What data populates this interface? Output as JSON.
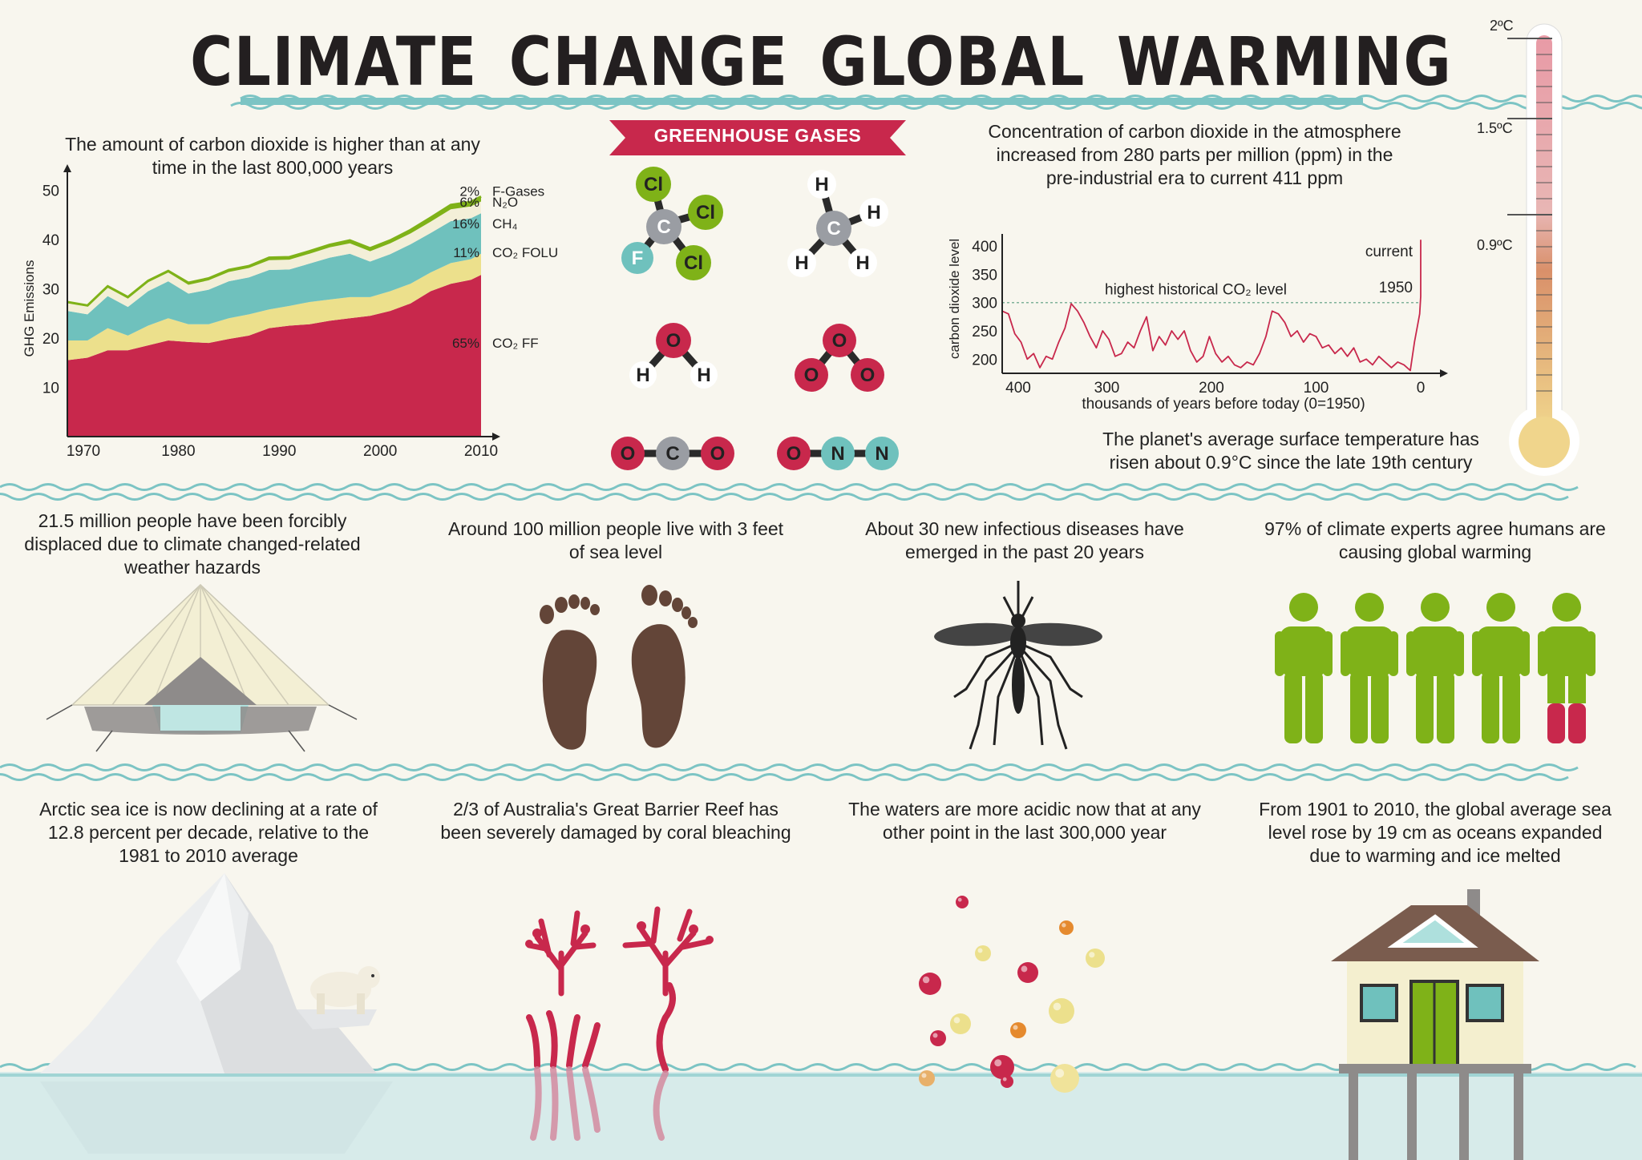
{
  "title": "CLIMATE CHANGE  GLOBAL WARMING",
  "colors": {
    "background": "#f8f6ee",
    "wave": "#7cc4c4",
    "red": "#c8284c",
    "green": "#7fb218",
    "teal": "#6fc1bd",
    "yellow": "#ece08c",
    "brown": "#634538",
    "water": "#d7ebea"
  },
  "emissions_chart": {
    "caption": "The amount of carbon dioxide is higher than at any time in the last 800,000 years",
    "y_axis_label": "GHG Emissions",
    "y_ticks": [
      "10",
      "20",
      "30",
      "40",
      "50"
    ],
    "x_ticks": [
      "1970",
      "1980",
      "1990",
      "2000",
      "2010"
    ],
    "legend": [
      {
        "pct": "2%",
        "name": "F-Gases"
      },
      {
        "pct": "6%",
        "name": "N₂O"
      },
      {
        "pct": "16%",
        "name": "CH₄"
      },
      {
        "pct": "11%",
        "name": "CO₂ FOLU"
      },
      {
        "pct": "65%",
        "name": "CO₂ FF"
      }
    ]
  },
  "greenhouse": {
    "banner": "GREENHOUSE GASES",
    "molecules": [
      {
        "name": "cfc",
        "atoms": [
          "Cl",
          "C",
          "Cl",
          "F",
          "Cl"
        ]
      },
      {
        "name": "methane",
        "atoms": [
          "H",
          "H",
          "C",
          "H",
          "H"
        ]
      },
      {
        "name": "water",
        "atoms": [
          "O",
          "H",
          "H"
        ]
      },
      {
        "name": "ozone",
        "atoms": [
          "O",
          "O",
          "O"
        ]
      },
      {
        "name": "carbon-dioxide",
        "atoms": [
          "O",
          "C",
          "O"
        ]
      },
      {
        "name": "nitrous-oxide",
        "atoms": [
          "O",
          "N",
          "N"
        ]
      }
    ]
  },
  "co2_chart": {
    "caption": "Concentration of carbon dioxide in the atmosphere increased from 280 parts per million (ppm) in the pre-industrial era to current 411 ppm",
    "y_axis_label": "carbon dioxide level",
    "x_axis_label": "thousands of years before today (0=1950)",
    "y_ticks": [
      "200",
      "250",
      "300",
      "350",
      "400"
    ],
    "x_ticks": [
      "400",
      "300",
      "200",
      "100",
      "0"
    ],
    "annotations": {
      "current": "current",
      "year_1950": "1950",
      "highest": "highest historical CO₂ level"
    }
  },
  "thermometer": {
    "labels": [
      "2ºC",
      "1.5ºC",
      "0.9ºC"
    ],
    "caption": "The planet's average surface temperature has risen about 0.9°C since the late 19th century"
  },
  "facts_row1": [
    "21.5 million people have been forcibly displaced due to climate changed-related weather hazards",
    "Around 100 million people live with 3 feet of sea level",
    "About 30 new infectious diseases have emerged in the past 20 years",
    "97% of climate experts agree humans are causing global warming"
  ],
  "facts_row2": [
    "Arctic sea ice is now declining at a rate of 12.8 percent per decade, relative to the 1981 to 2010 average",
    "2/3 of Australia's Great Barrier Reef has been severely damaged by coral bleaching",
    "The waters are more acidic now that at any other point in the last 300,000 year",
    "From 1901 to 2010, the global average sea level rose by 19 cm as oceans expanded due to warming and ice melted"
  ],
  "chart_data": [
    {
      "type": "area",
      "title": "The amount of carbon dioxide is higher than at any time in the last 800,000 years",
      "xlabel": "",
      "ylabel": "GHG Emissions",
      "xlim": [
        1969,
        2010
      ],
      "ylim": [
        0,
        52
      ],
      "stacked": true,
      "x": [
        1969,
        1971,
        1973,
        1975,
        1977,
        1979,
        1981,
        1983,
        1985,
        1987,
        1989,
        1991,
        1993,
        1995,
        1997,
        1999,
        2001,
        2003,
        2005,
        2007,
        2009,
        2010
      ],
      "series": [
        {
          "name": "CO₂ FF",
          "color": "#c8284c",
          "values": [
            15.5,
            16.0,
            17.5,
            17.5,
            18.5,
            19.5,
            19.2,
            19.0,
            19.8,
            20.5,
            22.0,
            22.5,
            22.8,
            23.5,
            24.0,
            24.5,
            25.5,
            27.0,
            29.5,
            31.0,
            31.8,
            32.8
          ]
        },
        {
          "name": "CO₂ FOLU",
          "color": "#ece08c",
          "values": [
            4.0,
            3.5,
            4.5,
            3.0,
            4.0,
            4.5,
            3.6,
            3.8,
            4.2,
            4.3,
            3.8,
            4.0,
            4.5,
            4.3,
            4.3,
            3.8,
            4.0,
            4.0,
            3.8,
            4.2,
            4.2,
            4.3
          ]
        },
        {
          "name": "CH₄",
          "color": "#6fc1bd",
          "values": [
            6.0,
            5.3,
            6.5,
            5.8,
            7.0,
            7.5,
            6.2,
            7.0,
            7.5,
            7.5,
            8.0,
            7.4,
            7.8,
            8.5,
            8.8,
            7.2,
            7.5,
            8.0,
            8.0,
            8.5,
            8.3,
            8.2
          ]
        },
        {
          "name": "N₂O",
          "color": "#f3efd8",
          "values": [
            1.6,
            1.6,
            1.7,
            1.7,
            1.8,
            1.8,
            1.8,
            1.9,
            1.9,
            1.9,
            2.0,
            2.0,
            2.0,
            2.1,
            2.1,
            2.1,
            2.2,
            2.2,
            2.3,
            2.4,
            2.4,
            2.4
          ]
        },
        {
          "name": "F-Gases",
          "color": "#7fb218",
          "values": [
            0.2,
            0.2,
            0.3,
            0.3,
            0.3,
            0.3,
            0.4,
            0.4,
            0.4,
            0.4,
            0.5,
            0.5,
            0.5,
            0.5,
            0.6,
            0.6,
            0.6,
            0.7,
            0.8,
            0.9,
            0.9,
            1.0
          ]
        }
      ]
    },
    {
      "type": "line",
      "title": "Concentration of carbon dioxide in the atmosphere increased from 280 parts per million (ppm) in the pre-industrial era to current 411 ppm",
      "xlabel": "thousands of years before today (0=1950)",
      "ylabel": "carbon dioxide level",
      "xlim": [
        400,
        0
      ],
      "ylim": [
        175,
        410
      ],
      "reference_line": {
        "label": "highest historical CO₂ level",
        "value": 300
      },
      "x": [
        400,
        394,
        388,
        382,
        376,
        370,
        364,
        358,
        352,
        346,
        340,
        334,
        328,
        322,
        316,
        310,
        304,
        298,
        292,
        286,
        280,
        274,
        268,
        262,
        256,
        250,
        244,
        238,
        232,
        226,
        220,
        214,
        208,
        202,
        196,
        190,
        184,
        178,
        172,
        166,
        160,
        154,
        148,
        142,
        136,
        130,
        124,
        118,
        112,
        106,
        100,
        94,
        88,
        82,
        76,
        70,
        64,
        58,
        52,
        46,
        40,
        34,
        28,
        22,
        16,
        10,
        6,
        3,
        1,
        0,
        0
      ],
      "values": [
        285,
        280,
        245,
        230,
        200,
        210,
        185,
        205,
        200,
        230,
        255,
        298,
        285,
        265,
        240,
        220,
        250,
        235,
        205,
        210,
        230,
        220,
        250,
        275,
        215,
        240,
        225,
        250,
        235,
        250,
        215,
        195,
        205,
        240,
        210,
        195,
        205,
        190,
        185,
        195,
        190,
        210,
        240,
        285,
        280,
        265,
        240,
        250,
        230,
        245,
        240,
        220,
        225,
        210,
        220,
        205,
        220,
        195,
        200,
        190,
        205,
        195,
        185,
        195,
        190,
        180,
        230,
        260,
        280,
        311,
        411
      ]
    }
  ]
}
